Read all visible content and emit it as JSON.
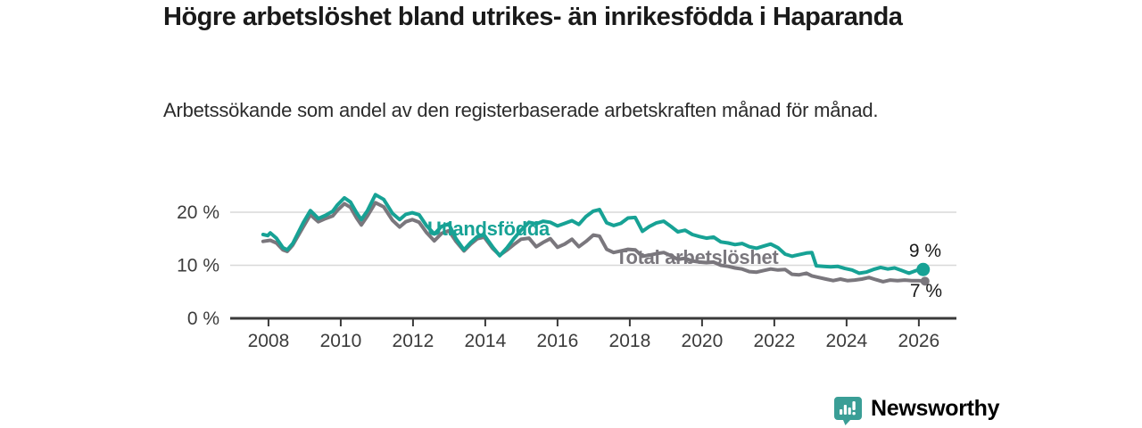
{
  "header": {
    "title": "Högre arbetslöshet bland utrikes- än inrikesfödda i Haparanda",
    "subtitle": "Arbetssökande som andel av den registerbaserade arbetskraften månad för månad."
  },
  "colors": {
    "accent_teal": "#17a295",
    "series_gray": "#7a777d",
    "grid": "#d8d8d8",
    "axis": "#3a3a3a",
    "tick_label": "#3c3c3c",
    "value_label": "#1a1a1a",
    "logo_teal": "#3a9e96"
  },
  "branding": {
    "logo_text": "Newsworthy",
    "logo_icon": "bar-chart-speech-bubble-icon"
  },
  "chart_data": {
    "type": "line",
    "title": "Högre arbetslöshet bland utrikes- än inrikesfödda i Haparanda",
    "subtitle": "Arbetssökande som andel av den registerbaserade arbetskraften månad för månad.",
    "xlabel": "",
    "ylabel": "",
    "x_unit": "year (decimal years, monthly data 2008 – early 2026)",
    "y_unit": "percent of registered labour force",
    "xlim": [
      2006.94,
      2027.04
    ],
    "ylim": [
      0,
      24.7
    ],
    "grid": "horizontal",
    "legend_position": "inline-labels",
    "x_ticks": [
      {
        "value": 2008,
        "label": "2008"
      },
      {
        "value": 2010,
        "label": "2010"
      },
      {
        "value": 2012,
        "label": "2012"
      },
      {
        "value": 2014,
        "label": "2014"
      },
      {
        "value": 2016,
        "label": "2016"
      },
      {
        "value": 2018,
        "label": "2018"
      },
      {
        "value": 2020,
        "label": "2020"
      },
      {
        "value": 2022,
        "label": "2022"
      },
      {
        "value": 2024,
        "label": "2024"
      },
      {
        "value": 2026,
        "label": "2026"
      }
    ],
    "y_ticks": [
      {
        "value": 20,
        "label": "20 %"
      },
      {
        "value": 10,
        "label": "10 %"
      },
      {
        "value": 0,
        "label": "0 %"
      }
    ],
    "series": [
      {
        "name": "Utlandsfödda",
        "color": "#17a295",
        "end_label": "9 %",
        "end_value": 9,
        "end_dot_radius": 7.5,
        "points": [
          [
            2007.85,
            15.8
          ],
          [
            2007.98,
            15.6
          ],
          [
            2008.05,
            16.1
          ],
          [
            2008.22,
            15.1
          ],
          [
            2008.4,
            13.3
          ],
          [
            2008.52,
            12.9
          ],
          [
            2008.67,
            14.1
          ],
          [
            2008.96,
            18.0
          ],
          [
            2009.16,
            20.3
          ],
          [
            2009.38,
            18.8
          ],
          [
            2009.58,
            19.4
          ],
          [
            2009.78,
            20.2
          ],
          [
            2009.9,
            21.3
          ],
          [
            2010.1,
            22.7
          ],
          [
            2010.27,
            21.9
          ],
          [
            2010.44,
            19.9
          ],
          [
            2010.57,
            18.6
          ],
          [
            2010.74,
            20.3
          ],
          [
            2010.96,
            23.3
          ],
          [
            2011.19,
            22.4
          ],
          [
            2011.43,
            19.8
          ],
          [
            2011.63,
            18.6
          ],
          [
            2011.8,
            19.6
          ],
          [
            2011.98,
            19.9
          ],
          [
            2012.17,
            19.5
          ],
          [
            2012.37,
            17.5
          ],
          [
            2012.59,
            15.9
          ],
          [
            2012.79,
            17.3
          ],
          [
            2012.99,
            17.8
          ],
          [
            2013.19,
            15.0
          ],
          [
            2013.41,
            12.9
          ],
          [
            2013.6,
            14.3
          ],
          [
            2013.78,
            15.4
          ],
          [
            2013.97,
            15.7
          ],
          [
            2014.2,
            13.5
          ],
          [
            2014.4,
            11.8
          ],
          [
            2014.59,
            13.2
          ],
          [
            2014.79,
            15.0
          ],
          [
            2014.99,
            16.6
          ],
          [
            2015.21,
            18.1
          ],
          [
            2015.41,
            17.8
          ],
          [
            2015.6,
            18.3
          ],
          [
            2015.8,
            18.1
          ],
          [
            2016.0,
            17.4
          ],
          [
            2016.2,
            17.9
          ],
          [
            2016.4,
            18.4
          ],
          [
            2016.59,
            17.7
          ],
          [
            2016.79,
            19.2
          ],
          [
            2016.99,
            20.2
          ],
          [
            2017.16,
            20.5
          ],
          [
            2017.36,
            18.0
          ],
          [
            2017.55,
            17.5
          ],
          [
            2017.75,
            17.9
          ],
          [
            2017.95,
            18.9
          ],
          [
            2018.15,
            19.0
          ],
          [
            2018.35,
            16.4
          ],
          [
            2018.54,
            17.3
          ],
          [
            2018.74,
            18.0
          ],
          [
            2018.94,
            18.3
          ],
          [
            2019.14,
            17.3
          ],
          [
            2019.33,
            16.3
          ],
          [
            2019.53,
            16.6
          ],
          [
            2019.73,
            15.8
          ],
          [
            2019.93,
            15.4
          ],
          [
            2020.12,
            15.1
          ],
          [
            2020.32,
            15.3
          ],
          [
            2020.52,
            14.4
          ],
          [
            2020.72,
            14.2
          ],
          [
            2020.91,
            13.9
          ],
          [
            2021.11,
            14.1
          ],
          [
            2021.31,
            13.5
          ],
          [
            2021.51,
            13.2
          ],
          [
            2021.7,
            13.6
          ],
          [
            2021.9,
            14.0
          ],
          [
            2022.1,
            13.3
          ],
          [
            2022.3,
            12.1
          ],
          [
            2022.49,
            11.7
          ],
          [
            2022.69,
            12.0
          ],
          [
            2022.89,
            12.3
          ],
          [
            2023.04,
            12.4
          ],
          [
            2023.16,
            9.9
          ],
          [
            2023.36,
            9.8
          ],
          [
            2023.56,
            9.7
          ],
          [
            2023.75,
            9.8
          ],
          [
            2023.95,
            9.4
          ],
          [
            2024.15,
            9.1
          ],
          [
            2024.35,
            8.5
          ],
          [
            2024.54,
            8.7
          ],
          [
            2024.74,
            9.2
          ],
          [
            2024.94,
            9.6
          ],
          [
            2025.14,
            9.3
          ],
          [
            2025.33,
            9.5
          ],
          [
            2025.53,
            9.0
          ],
          [
            2025.73,
            8.5
          ],
          [
            2025.93,
            9.0
          ],
          [
            2026.12,
            9.2
          ]
        ]
      },
      {
        "name": "Total arbetslöshet",
        "color": "#7a777d",
        "end_label": "7 %",
        "end_value": 7,
        "end_dot_radius": 5,
        "points": [
          [
            2007.85,
            14.5
          ],
          [
            2008.05,
            14.7
          ],
          [
            2008.22,
            14.2
          ],
          [
            2008.4,
            12.9
          ],
          [
            2008.52,
            12.6
          ],
          [
            2008.67,
            13.8
          ],
          [
            2008.96,
            17.2
          ],
          [
            2009.16,
            19.5
          ],
          [
            2009.38,
            18.2
          ],
          [
            2009.58,
            18.8
          ],
          [
            2009.78,
            19.3
          ],
          [
            2009.9,
            20.3
          ],
          [
            2010.1,
            21.6
          ],
          [
            2010.27,
            20.9
          ],
          [
            2010.44,
            18.9
          ],
          [
            2010.57,
            17.6
          ],
          [
            2010.74,
            19.3
          ],
          [
            2010.96,
            21.8
          ],
          [
            2011.19,
            21.0
          ],
          [
            2011.43,
            18.5
          ],
          [
            2011.63,
            17.2
          ],
          [
            2011.8,
            18.2
          ],
          [
            2011.98,
            18.6
          ],
          [
            2012.17,
            18.1
          ],
          [
            2012.37,
            16.2
          ],
          [
            2012.59,
            14.6
          ],
          [
            2012.79,
            16.0
          ],
          [
            2012.99,
            16.5
          ],
          [
            2013.19,
            14.5
          ],
          [
            2013.41,
            12.7
          ],
          [
            2013.6,
            14.0
          ],
          [
            2013.78,
            15.0
          ],
          [
            2013.97,
            15.3
          ],
          [
            2014.2,
            13.2
          ],
          [
            2014.4,
            11.9
          ],
          [
            2014.59,
            12.8
          ],
          [
            2014.79,
            13.9
          ],
          [
            2014.99,
            14.9
          ],
          [
            2015.21,
            15.1
          ],
          [
            2015.41,
            13.5
          ],
          [
            2015.6,
            14.3
          ],
          [
            2015.8,
            15.0
          ],
          [
            2016.0,
            13.4
          ],
          [
            2016.2,
            14.0
          ],
          [
            2016.4,
            14.9
          ],
          [
            2016.59,
            13.5
          ],
          [
            2016.79,
            14.5
          ],
          [
            2016.99,
            15.7
          ],
          [
            2017.16,
            15.5
          ],
          [
            2017.36,
            13.0
          ],
          [
            2017.55,
            12.4
          ],
          [
            2017.75,
            12.7
          ],
          [
            2017.95,
            13.0
          ],
          [
            2018.15,
            12.9
          ],
          [
            2018.35,
            11.7
          ],
          [
            2018.54,
            11.9
          ],
          [
            2018.74,
            12.2
          ],
          [
            2018.94,
            12.4
          ],
          [
            2019.14,
            11.8
          ],
          [
            2019.33,
            11.1
          ],
          [
            2019.53,
            11.3
          ],
          [
            2019.73,
            10.8
          ],
          [
            2019.93,
            10.6
          ],
          [
            2020.12,
            10.5
          ],
          [
            2020.32,
            10.6
          ],
          [
            2020.52,
            10.0
          ],
          [
            2020.72,
            9.8
          ],
          [
            2020.91,
            9.5
          ],
          [
            2021.11,
            9.3
          ],
          [
            2021.31,
            8.8
          ],
          [
            2021.51,
            8.7
          ],
          [
            2021.7,
            9.0
          ],
          [
            2021.9,
            9.3
          ],
          [
            2022.1,
            9.1
          ],
          [
            2022.3,
            9.2
          ],
          [
            2022.49,
            8.3
          ],
          [
            2022.69,
            8.2
          ],
          [
            2022.89,
            8.5
          ],
          [
            2023.04,
            8.0
          ],
          [
            2023.23,
            7.7
          ],
          [
            2023.43,
            7.4
          ],
          [
            2023.63,
            7.1
          ],
          [
            2023.83,
            7.4
          ],
          [
            2024.02,
            7.1
          ],
          [
            2024.22,
            7.2
          ],
          [
            2024.42,
            7.4
          ],
          [
            2024.62,
            7.7
          ],
          [
            2024.81,
            7.3
          ],
          [
            2025.01,
            6.9
          ],
          [
            2025.21,
            7.2
          ],
          [
            2025.41,
            7.1
          ],
          [
            2025.61,
            7.2
          ],
          [
            2025.8,
            7.1
          ],
          [
            2026.0,
            7.1
          ],
          [
            2026.17,
            7.0
          ]
        ]
      }
    ]
  }
}
